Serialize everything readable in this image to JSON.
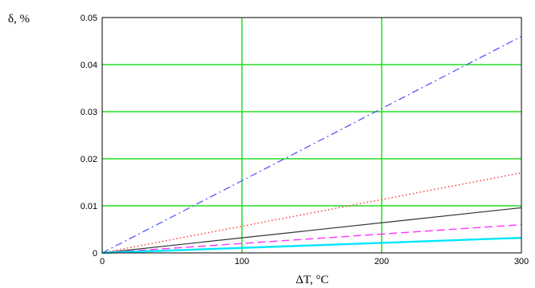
{
  "chart_data": {
    "type": "line",
    "xlabel": "ΔT, °C",
    "ylabel": "δ, %",
    "xlim": [
      0,
      300
    ],
    "ylim": [
      0,
      0.05
    ],
    "x_ticks": [
      0,
      100,
      200,
      300
    ],
    "y_ticks": [
      0,
      0.01,
      0.02,
      0.03,
      0.04,
      0.05
    ],
    "x_tick_labels": [
      "0",
      "100",
      "200",
      "300"
    ],
    "y_tick_labels": [
      "0",
      "0.01",
      "0.02",
      "0.03",
      "0.04",
      "0.05"
    ],
    "grid": true,
    "grid_color": "#22dd22",
    "series": [
      {
        "color": "#4a4aff",
        "style": "dash-dot",
        "x": [
          0,
          300
        ],
        "y": [
          0,
          0.046
        ]
      },
      {
        "color": "#ff3030",
        "style": "dotted",
        "x": [
          0,
          300
        ],
        "y": [
          0,
          0.017
        ]
      },
      {
        "color": "#333333",
        "style": "solid",
        "x": [
          0,
          300
        ],
        "y": [
          0,
          0.0096
        ]
      },
      {
        "color": "#ff33ff",
        "style": "dashed",
        "x": [
          0,
          300
        ],
        "y": [
          0,
          0.006
        ]
      },
      {
        "color": "#00e5ff",
        "style": "solid-thick",
        "x": [
          0,
          300
        ],
        "y": [
          0,
          0.0032
        ]
      }
    ]
  }
}
